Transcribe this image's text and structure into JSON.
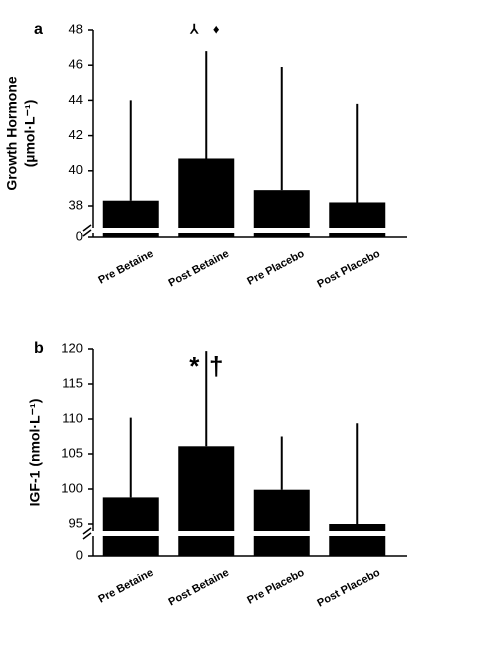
{
  "chart_data": [
    {
      "type": "bar",
      "panel_label": "a",
      "ylabel": [
        "Growth Hormone",
        "(µmol·L⁻¹)"
      ],
      "categories": [
        "Pre Betaine",
        "Post Betaine",
        "Pre Placebo",
        "Post Placebo"
      ],
      "values": [
        38.3,
        40.7,
        38.9,
        38.2
      ],
      "errors": [
        5.7,
        6.1,
        7.0,
        5.6
      ],
      "color": "#000000",
      "ylim": [
        36.75,
        48
      ],
      "yticks": [
        0,
        38,
        40,
        42,
        44,
        46,
        48
      ],
      "axis_break": true,
      "annotations": [
        "⅄",
        "♦"
      ]
    },
    {
      "type": "bar",
      "panel_label": "b",
      "ylabel": [
        "IGF-1 (nmol·L⁻¹)"
      ],
      "categories": [
        "Pre Betaine",
        "Post Betaine",
        "Pre Placebo",
        "Post Placebo"
      ],
      "values": [
        98.8,
        106.1,
        99.9,
        95.0
      ],
      "errors": [
        11.4,
        13.6,
        7.6,
        14.4
      ],
      "color": "#000000",
      "ylim": [
        94,
        120
      ],
      "yticks": [
        0,
        95,
        100,
        105,
        110,
        115,
        120
      ],
      "axis_break": true,
      "annotations": [
        "*",
        "†"
      ]
    }
  ]
}
